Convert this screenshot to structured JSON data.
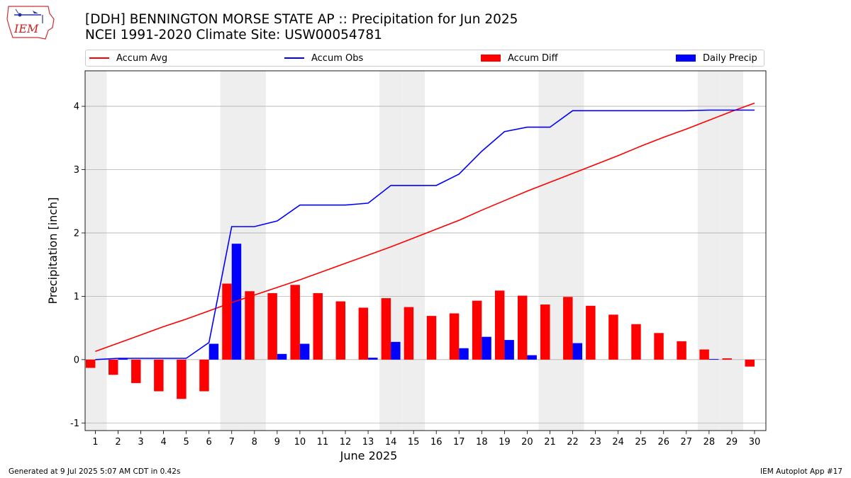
{
  "header": {
    "title_line1": "[DDH] BENNINGTON MORSE STATE AP :: Precipitation for Jun 2025",
    "title_line2": "NCEI 1991-2020 Climate Site: USW00054781",
    "logo_text": "IEM"
  },
  "legend": {
    "accum_avg": "Accum Avg",
    "accum_obs": "Accum Obs",
    "accum_diff": "Accum Diff",
    "daily_precip": "Daily Precip"
  },
  "colors": {
    "accum_avg": "#ff0000",
    "accum_obs": "#0000ff",
    "accum_diff": "#ff0000",
    "daily_precip": "#0000ff",
    "weekend_shade": "#eeeeee",
    "grid": "#b0b0b0"
  },
  "footer": {
    "left": "Generated at 9 Jul 2025 5:07 AM CDT in 0.42s",
    "right": "IEM Autoplot App #17"
  },
  "chart_data": {
    "type": "bar",
    "xlabel": "June 2025",
    "ylabel": "Precipitation [inch]",
    "ylim": [
      -1.12,
      4.56
    ],
    "yticks": [
      -1,
      0,
      1,
      2,
      3,
      4
    ],
    "grid": "horizontal",
    "legend_position": "top",
    "categories": [
      "1",
      "2",
      "3",
      "4",
      "5",
      "6",
      "7",
      "8",
      "9",
      "10",
      "11",
      "12",
      "13",
      "14",
      "15",
      "16",
      "17",
      "18",
      "19",
      "20",
      "21",
      "22",
      "23",
      "24",
      "25",
      "26",
      "27",
      "28",
      "29",
      "30"
    ],
    "weekend_days": [
      1,
      7,
      8,
      14,
      15,
      21,
      22,
      28,
      29
    ],
    "series": [
      {
        "name": "Accum Avg",
        "kind": "line",
        "values": [
          0.13,
          0.26,
          0.39,
          0.52,
          0.64,
          0.77,
          0.9,
          1.02,
          1.14,
          1.26,
          1.39,
          1.52,
          1.65,
          1.78,
          1.92,
          2.06,
          2.2,
          2.36,
          2.51,
          2.66,
          2.8,
          2.94,
          3.08,
          3.22,
          3.37,
          3.51,
          3.64,
          3.78,
          3.92,
          4.05
        ]
      },
      {
        "name": "Accum Obs",
        "kind": "line",
        "values": [
          0.0,
          0.02,
          0.02,
          0.02,
          0.02,
          0.27,
          2.1,
          2.1,
          2.19,
          2.44,
          2.44,
          2.44,
          2.47,
          2.75,
          2.75,
          2.75,
          2.93,
          3.29,
          3.6,
          3.67,
          3.67,
          3.93,
          3.93,
          3.93,
          3.93,
          3.93,
          3.93,
          3.94,
          3.94,
          3.94
        ]
      },
      {
        "name": "Accum Diff",
        "kind": "bar",
        "values": [
          -0.13,
          -0.24,
          -0.37,
          -0.5,
          -0.62,
          -0.5,
          1.2,
          1.08,
          1.05,
          1.18,
          1.05,
          0.92,
          0.82,
          0.97,
          0.83,
          0.69,
          0.73,
          0.93,
          1.09,
          1.01,
          0.87,
          0.99,
          0.85,
          0.71,
          0.56,
          0.42,
          0.29,
          0.16,
          0.02,
          -0.11
        ]
      },
      {
        "name": "Daily Precip",
        "kind": "bar",
        "values": [
          0.0,
          0.02,
          0.0,
          0.0,
          0.0,
          0.25,
          1.83,
          0.0,
          0.09,
          0.25,
          0.0,
          0.0,
          0.03,
          0.28,
          0.0,
          0.0,
          0.18,
          0.36,
          0.31,
          0.07,
          0.0,
          0.26,
          0.0,
          0.0,
          0.0,
          0.0,
          0.0,
          0.01,
          0.0,
          0.0
        ]
      }
    ]
  }
}
